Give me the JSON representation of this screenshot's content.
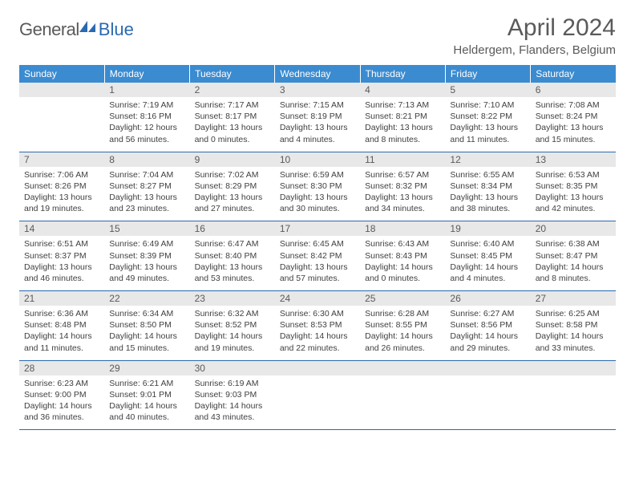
{
  "logo": {
    "gray": "General",
    "blue": "Blue"
  },
  "title": "April 2024",
  "location": "Heldergem, Flanders, Belgium",
  "colors": {
    "header_bg": "#3b8bd0",
    "rule": "#2a6ab0",
    "daynum_bg": "#e8e8e8",
    "text": "#404040"
  },
  "dow": [
    "Sunday",
    "Monday",
    "Tuesday",
    "Wednesday",
    "Thursday",
    "Friday",
    "Saturday"
  ],
  "firstWeekday": 1,
  "daysInMonth": 30,
  "days": {
    "1": {
      "sr": "7:19 AM",
      "ss": "8:16 PM",
      "dl": "12 hours and 56 minutes."
    },
    "2": {
      "sr": "7:17 AM",
      "ss": "8:17 PM",
      "dl": "13 hours and 0 minutes."
    },
    "3": {
      "sr": "7:15 AM",
      "ss": "8:19 PM",
      "dl": "13 hours and 4 minutes."
    },
    "4": {
      "sr": "7:13 AM",
      "ss": "8:21 PM",
      "dl": "13 hours and 8 minutes."
    },
    "5": {
      "sr": "7:10 AM",
      "ss": "8:22 PM",
      "dl": "13 hours and 11 minutes."
    },
    "6": {
      "sr": "7:08 AM",
      "ss": "8:24 PM",
      "dl": "13 hours and 15 minutes."
    },
    "7": {
      "sr": "7:06 AM",
      "ss": "8:26 PM",
      "dl": "13 hours and 19 minutes."
    },
    "8": {
      "sr": "7:04 AM",
      "ss": "8:27 PM",
      "dl": "13 hours and 23 minutes."
    },
    "9": {
      "sr": "7:02 AM",
      "ss": "8:29 PM",
      "dl": "13 hours and 27 minutes."
    },
    "10": {
      "sr": "6:59 AM",
      "ss": "8:30 PM",
      "dl": "13 hours and 30 minutes."
    },
    "11": {
      "sr": "6:57 AM",
      "ss": "8:32 PM",
      "dl": "13 hours and 34 minutes."
    },
    "12": {
      "sr": "6:55 AM",
      "ss": "8:34 PM",
      "dl": "13 hours and 38 minutes."
    },
    "13": {
      "sr": "6:53 AM",
      "ss": "8:35 PM",
      "dl": "13 hours and 42 minutes."
    },
    "14": {
      "sr": "6:51 AM",
      "ss": "8:37 PM",
      "dl": "13 hours and 46 minutes."
    },
    "15": {
      "sr": "6:49 AM",
      "ss": "8:39 PM",
      "dl": "13 hours and 49 minutes."
    },
    "16": {
      "sr": "6:47 AM",
      "ss": "8:40 PM",
      "dl": "13 hours and 53 minutes."
    },
    "17": {
      "sr": "6:45 AM",
      "ss": "8:42 PM",
      "dl": "13 hours and 57 minutes."
    },
    "18": {
      "sr": "6:43 AM",
      "ss": "8:43 PM",
      "dl": "14 hours and 0 minutes."
    },
    "19": {
      "sr": "6:40 AM",
      "ss": "8:45 PM",
      "dl": "14 hours and 4 minutes."
    },
    "20": {
      "sr": "6:38 AM",
      "ss": "8:47 PM",
      "dl": "14 hours and 8 minutes."
    },
    "21": {
      "sr": "6:36 AM",
      "ss": "8:48 PM",
      "dl": "14 hours and 11 minutes."
    },
    "22": {
      "sr": "6:34 AM",
      "ss": "8:50 PM",
      "dl": "14 hours and 15 minutes."
    },
    "23": {
      "sr": "6:32 AM",
      "ss": "8:52 PM",
      "dl": "14 hours and 19 minutes."
    },
    "24": {
      "sr": "6:30 AM",
      "ss": "8:53 PM",
      "dl": "14 hours and 22 minutes."
    },
    "25": {
      "sr": "6:28 AM",
      "ss": "8:55 PM",
      "dl": "14 hours and 26 minutes."
    },
    "26": {
      "sr": "6:27 AM",
      "ss": "8:56 PM",
      "dl": "14 hours and 29 minutes."
    },
    "27": {
      "sr": "6:25 AM",
      "ss": "8:58 PM",
      "dl": "14 hours and 33 minutes."
    },
    "28": {
      "sr": "6:23 AM",
      "ss": "9:00 PM",
      "dl": "14 hours and 36 minutes."
    },
    "29": {
      "sr": "6:21 AM",
      "ss": "9:01 PM",
      "dl": "14 hours and 40 minutes."
    },
    "30": {
      "sr": "6:19 AM",
      "ss": "9:03 PM",
      "dl": "14 hours and 43 minutes."
    }
  },
  "labels": {
    "sunrise": "Sunrise:",
    "sunset": "Sunset:",
    "daylight": "Daylight:"
  }
}
